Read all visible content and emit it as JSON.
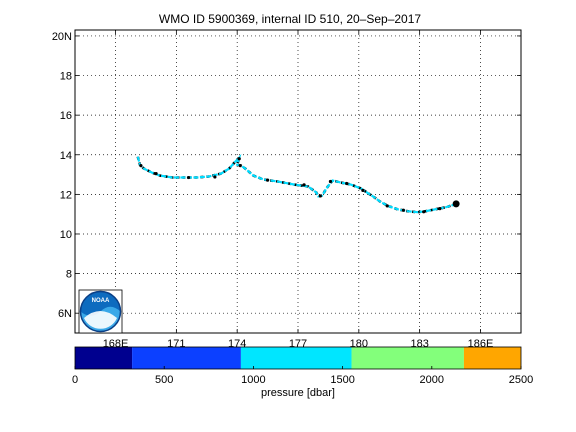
{
  "chart_data": {
    "type": "scatter",
    "title": "WMO ID 5900369, internal ID 510, 20–Sep–2017",
    "xlabel": "",
    "ylabel": "",
    "xlim": [
      166,
      188
    ],
    "ylim": [
      5,
      20.3
    ],
    "grid": true,
    "x_ticks": [
      168,
      171,
      174,
      177,
      180,
      183,
      186
    ],
    "x_tick_labels": [
      "168E",
      "171",
      "174",
      "177",
      "180",
      "183",
      "186E"
    ],
    "y_ticks": [
      6,
      8,
      10,
      12,
      14,
      16,
      18,
      20
    ],
    "y_tick_labels": [
      "6N",
      "8",
      "10",
      "12",
      "14",
      "16",
      "18",
      "20N"
    ],
    "track": {
      "x": [
        169.1,
        169.2,
        169.4,
        169.8,
        170.2,
        170.8,
        171.4,
        172.0,
        172.6,
        173.2,
        173.6,
        173.9,
        174.1,
        174.0,
        174.2,
        174.4,
        174.8,
        175.3,
        176.0,
        176.8,
        177.5,
        177.9,
        178.0,
        178.2,
        178.4,
        178.7,
        179.1,
        179.6,
        180.1,
        180.4,
        180.7,
        181.1,
        181.5,
        181.9,
        182.4,
        182.9,
        183.3,
        183.8,
        184.3,
        184.6,
        184.8
      ],
      "y": [
        13.9,
        13.5,
        13.3,
        13.1,
        12.95,
        12.85,
        12.85,
        12.85,
        12.9,
        13.05,
        13.3,
        13.65,
        13.85,
        13.5,
        13.45,
        13.3,
        12.95,
        12.75,
        12.65,
        12.5,
        12.4,
        12.1,
        11.9,
        11.95,
        12.3,
        12.7,
        12.6,
        12.5,
        12.3,
        12.1,
        11.9,
        11.6,
        11.4,
        11.25,
        11.15,
        11.1,
        11.15,
        11.25,
        11.35,
        11.45,
        11.5
      ]
    },
    "profiles": {
      "x": [
        169.25,
        170.0,
        171.6,
        172.9,
        174.1,
        174.15,
        175.5,
        177.3,
        178.1,
        178.6,
        179.4,
        180.2,
        181.4,
        182.2,
        183.2,
        184.0,
        184.8
      ],
      "y": [
        13.45,
        13.05,
        12.85,
        12.88,
        13.8,
        13.45,
        12.72,
        12.48,
        11.92,
        12.65,
        12.55,
        12.2,
        11.42,
        11.2,
        11.12,
        11.28,
        11.52
      ]
    },
    "last_position": {
      "x": 184.8,
      "y": 11.52
    },
    "colorbar": {
      "label": "pressure [dbar]",
      "ticks": [
        0,
        500,
        1000,
        1500,
        2000,
        2500
      ],
      "range": [
        0,
        2500
      ],
      "bins": [
        {
          "from": 0,
          "to": 320,
          "color": "#00008f"
        },
        {
          "from": 320,
          "to": 930,
          "color": "#0c40ff"
        },
        {
          "from": 930,
          "to": 1550,
          "color": "#00e6ff"
        },
        {
          "from": 1550,
          "to": 2180,
          "color": "#83ff7b"
        },
        {
          "from": 2180,
          "to": 2500,
          "color": "#ffa600"
        }
      ]
    }
  },
  "colors": {
    "track": "#00dcff",
    "profile_marker": "#000000"
  },
  "logo": {
    "text": "NOAA"
  }
}
